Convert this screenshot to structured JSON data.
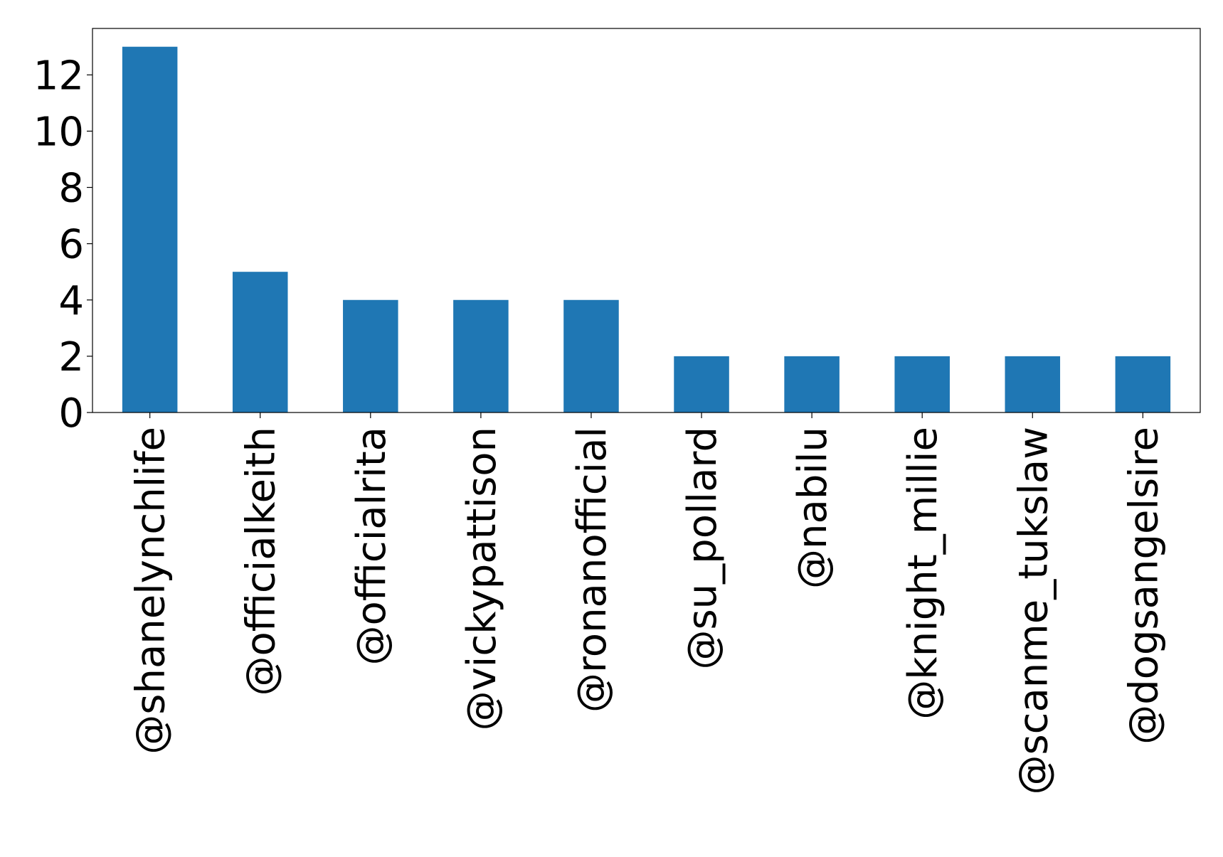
{
  "chart_data": {
    "type": "bar",
    "title": "",
    "xlabel": "",
    "ylabel": "",
    "categories": [
      "@shanelynchlife",
      "@officialkeith",
      "@officialrita",
      "@vickypattison",
      "@ronanofficial",
      "@su_pollard",
      "@nabilu",
      "@knight_millie",
      "@scanme_tukslaw",
      "@dogsangelsire"
    ],
    "values": [
      13,
      5,
      4,
      4,
      4,
      2,
      2,
      2,
      2,
      2
    ],
    "ylim": [
      0,
      13.65
    ],
    "yticks": [
      0,
      2,
      4,
      6,
      8,
      10,
      12
    ],
    "ytick_labels": [
      "0",
      "2",
      "4",
      "6",
      "8",
      "10",
      "12"
    ],
    "bar_color": "#1f77b4",
    "grid": false,
    "legend": "none"
  }
}
